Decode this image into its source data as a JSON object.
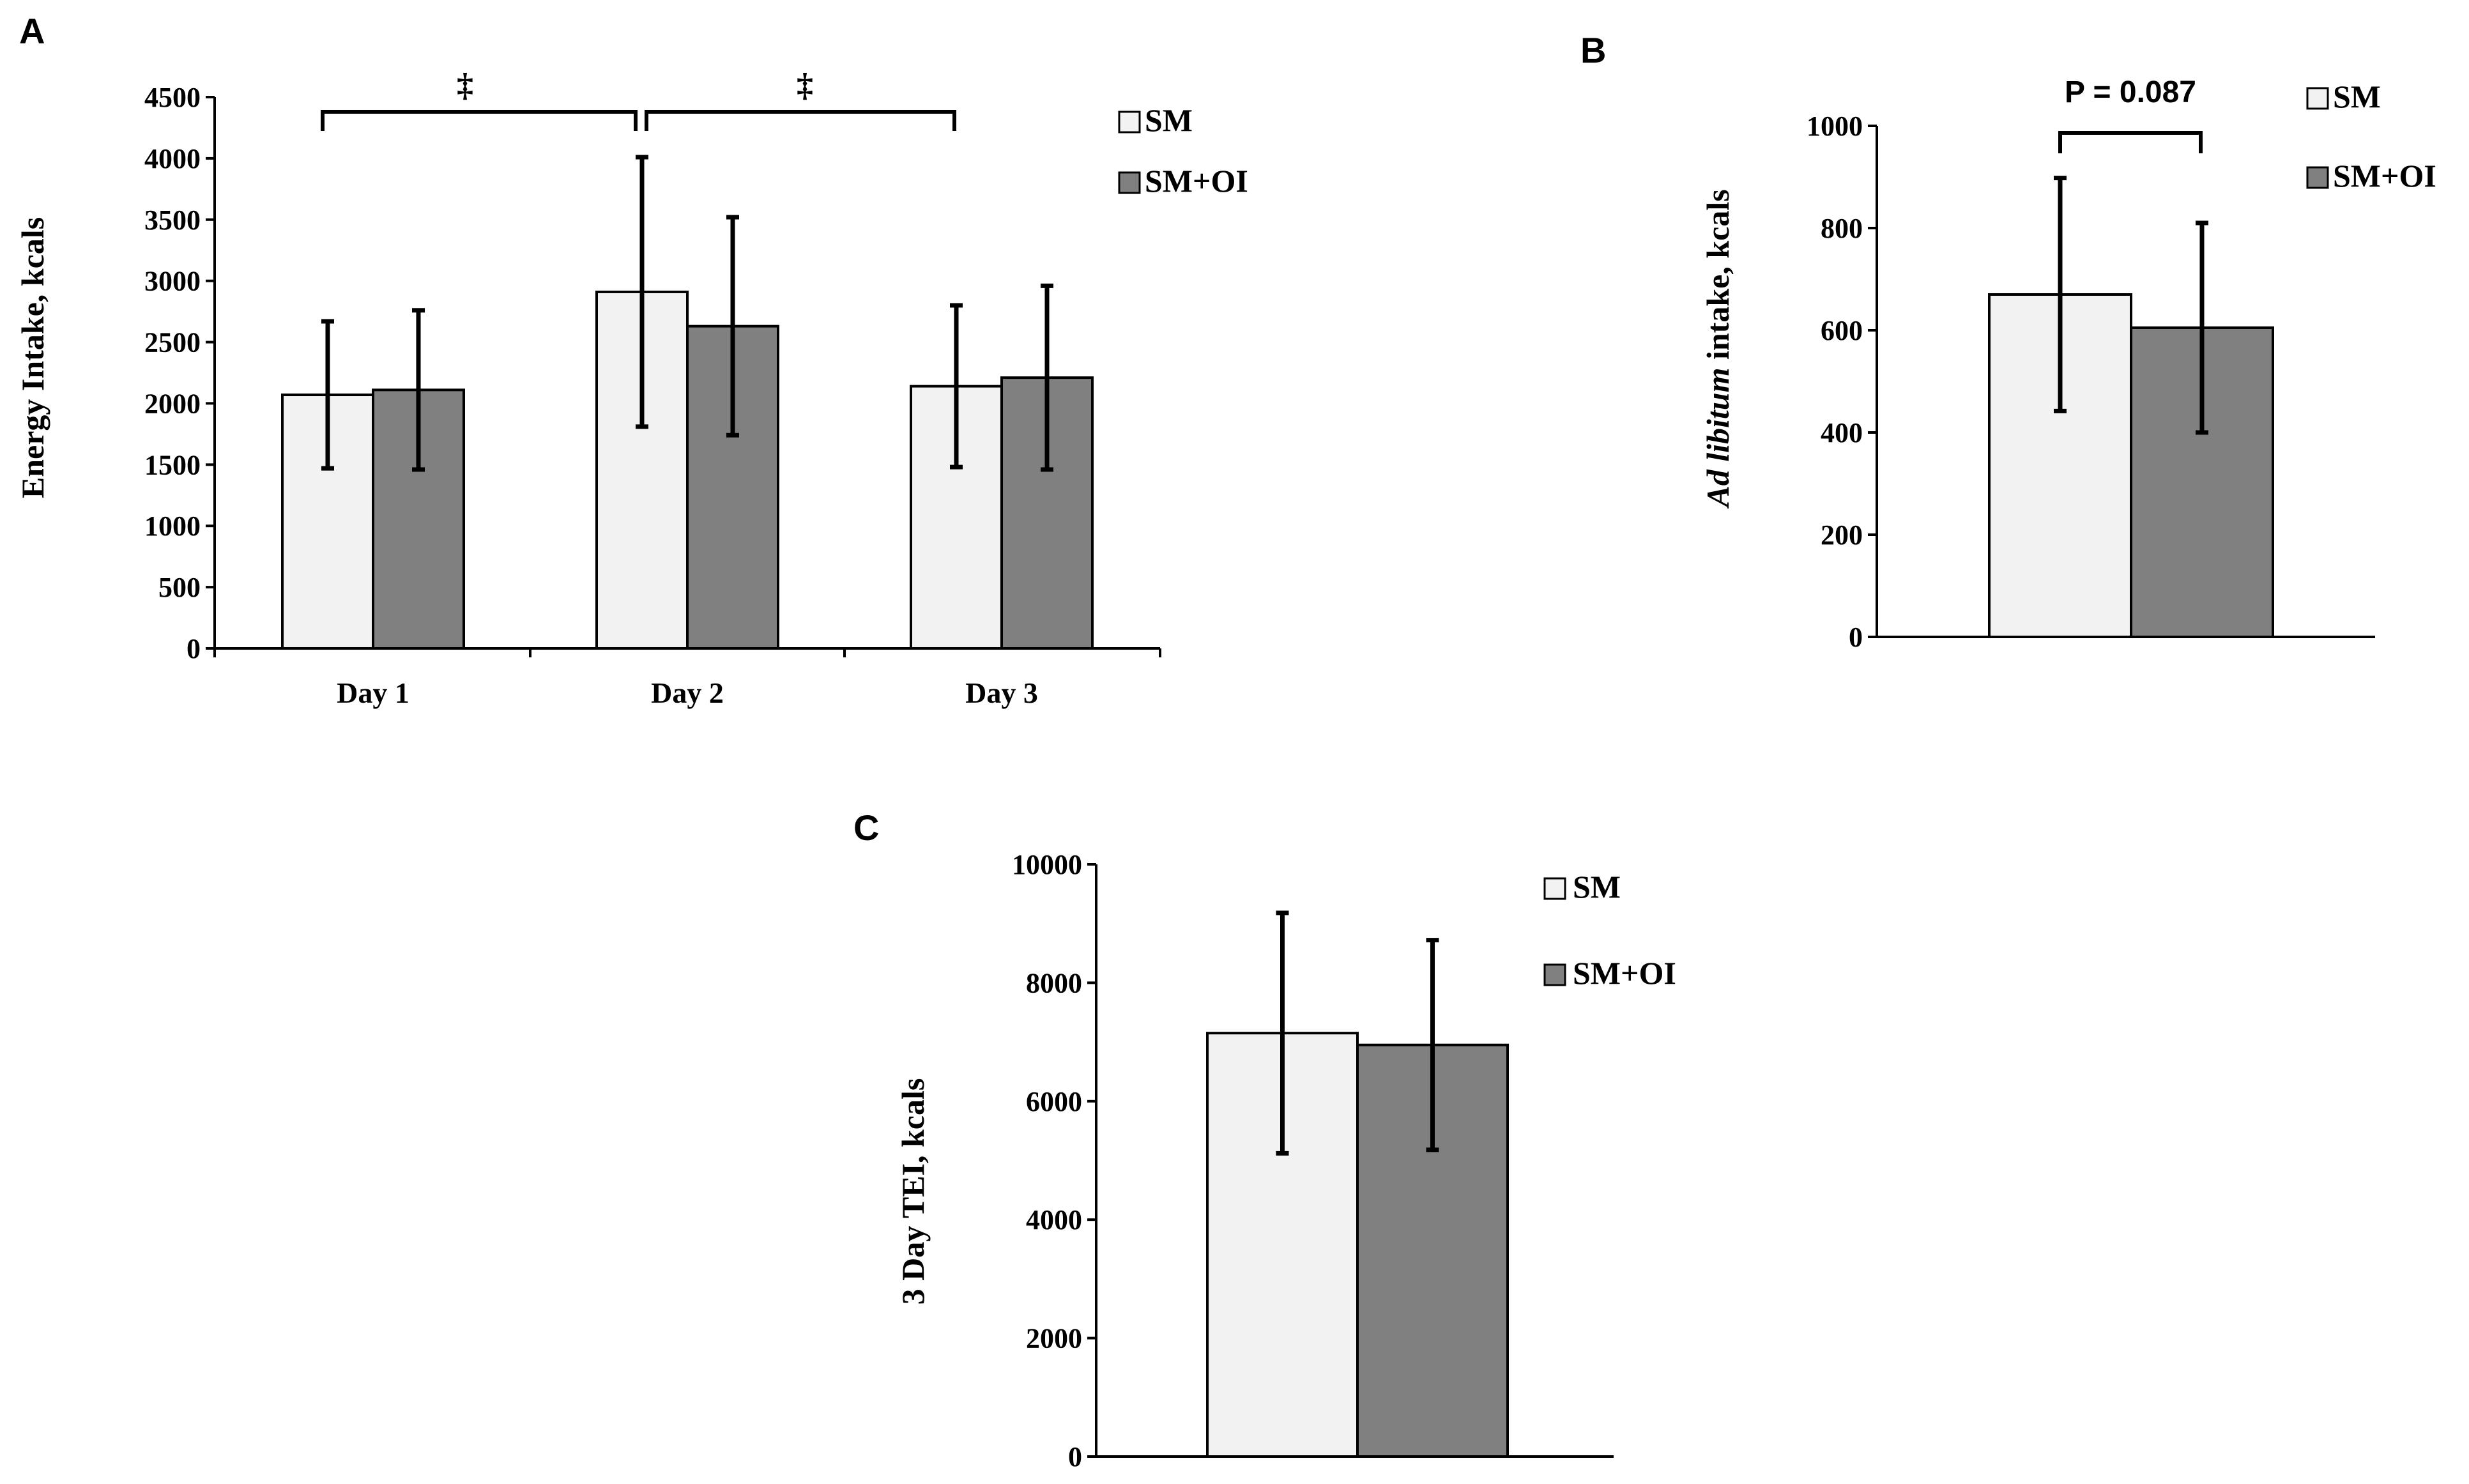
{
  "colors": {
    "SM": "#f2f2f2",
    "SM+OI": "#808080"
  },
  "chart_data": [
    {
      "panel": "A",
      "type": "bar",
      "title": "",
      "xlabel": "",
      "ylabel": "Energy Intake, kcals",
      "categories": [
        "Day 1",
        "Day 2",
        "Day 3"
      ],
      "ylim": [
        0,
        4500
      ],
      "yticks": [
        "0",
        "500",
        "1000",
        "1500",
        "2000",
        "2500",
        "3000",
        "3500",
        "4000",
        "4500"
      ],
      "series": [
        {
          "name": "SM",
          "values": [
            2070,
            2910,
            2140
          ],
          "errors": [
            600,
            1100,
            660
          ]
        },
        {
          "name": "SM+OI",
          "values": [
            2110,
            2630,
            2210
          ],
          "errors": [
            650,
            890,
            750
          ]
        }
      ],
      "legend": [
        "SM",
        "SM+OI"
      ],
      "annotations": [
        {
          "text": "‡",
          "from": "Day 1",
          "to": "Day 2"
        },
        {
          "text": "‡",
          "from": "Day 2",
          "to": "Day 3"
        }
      ]
    },
    {
      "panel": "B",
      "type": "bar",
      "title": "",
      "xlabel": "",
      "ylabel_italic": "Ad libitum",
      "ylabel_rest": " intake, kcals",
      "categories": [
        ""
      ],
      "ylim": [
        0,
        1000
      ],
      "yticks": [
        "0",
        "200",
        "400",
        "600",
        "800",
        "1000"
      ],
      "series": [
        {
          "name": "SM",
          "values": [
            670
          ],
          "errors": [
            228
          ]
        },
        {
          "name": "SM+OI",
          "values": [
            605
          ],
          "errors": [
            205
          ]
        }
      ],
      "legend": [
        "SM",
        "SM+OI"
      ],
      "annotations": [
        {
          "text": "P = 0.087"
        }
      ]
    },
    {
      "panel": "C",
      "type": "bar",
      "title": "",
      "xlabel": "",
      "ylabel": "3 Day TEI, kcals",
      "categories": [
        ""
      ],
      "ylim": [
        0,
        10000
      ],
      "yticks": [
        "0",
        "2000",
        "4000",
        "6000",
        "8000",
        "10000"
      ],
      "series": [
        {
          "name": "SM",
          "values": [
            7150
          ],
          "errors": [
            2030
          ]
        },
        {
          "name": "SM+OI",
          "values": [
            6950
          ],
          "errors": [
            1770
          ]
        }
      ],
      "legend": [
        "SM",
        "SM+OI"
      ]
    }
  ]
}
